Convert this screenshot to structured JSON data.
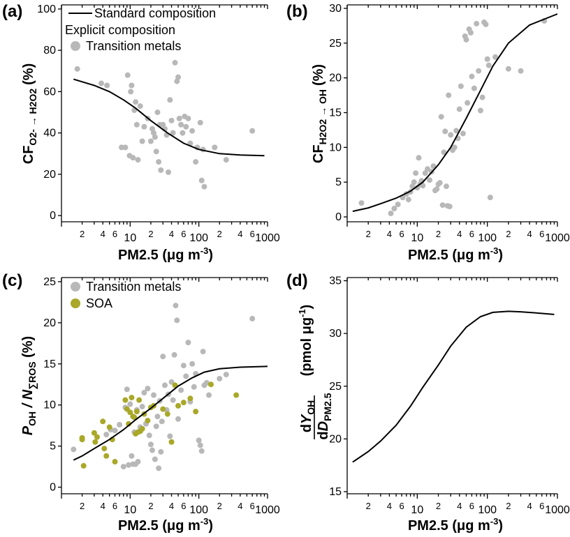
{
  "chart_data": [
    {
      "id": "a",
      "type": "scatter",
      "panel_label": "(a)",
      "xlabel_text": "PM2.5 (μg m",
      "xlabel_sup": "-3",
      "xlabel_close": ")",
      "ylabel_main": "CF",
      "ylabel_sub": "O2- → H2O2",
      "ylabel_unit": "(%)",
      "xscale": "log",
      "xlim": [
        1,
        1000
      ],
      "ylim": [
        -3,
        102
      ],
      "yticks": [
        0,
        20,
        40,
        60,
        80,
        100
      ],
      "xticks_major": [
        "10",
        "100",
        "1000"
      ],
      "xticks_minor": [
        "2",
        "4",
        "6",
        "2",
        "4",
        "6",
        "2",
        "4",
        "6"
      ],
      "legend": {
        "line_label": "Standard composition",
        "title": "Explicit composition",
        "markers": [
          {
            "name": "Transition metals",
            "color": "#b8b8b8"
          }
        ]
      },
      "series": [
        {
          "name": "Standard composition",
          "style": "line",
          "color": "#000000",
          "x": [
            1.5,
            3,
            5,
            8,
            12,
            20,
            35,
            60,
            100,
            200,
            400,
            900
          ],
          "y": [
            66,
            63,
            60,
            56,
            52,
            46,
            40,
            35,
            32,
            30,
            29.3,
            29
          ]
        },
        {
          "name": "Transition metals",
          "style": "points",
          "color": "#b8b8b8",
          "x": [
            1.7,
            3.8,
            4.6,
            7.5,
            8.5,
            9.2,
            9.8,
            10.2,
            10.5,
            11,
            11.5,
            12,
            12.5,
            13,
            14,
            15,
            16,
            18,
            20,
            21,
            22,
            23,
            24,
            25,
            26,
            27,
            28,
            30,
            32,
            34,
            36,
            38,
            40,
            42,
            45,
            48,
            50,
            52,
            55,
            58,
            62,
            65,
            70,
            75,
            80,
            90,
            95,
            105,
            110,
            115,
            120,
            170,
            250,
            600
          ],
          "y": [
            71,
            64,
            63,
            33,
            33,
            68,
            29,
            60,
            63,
            28,
            51,
            55,
            44,
            27,
            53,
            36,
            43,
            47,
            36,
            42,
            40,
            38,
            31,
            50,
            26,
            44,
            22,
            44,
            42,
            39,
            21,
            56,
            46,
            40,
            74,
            65,
            67,
            47,
            44,
            40,
            48,
            43,
            47,
            35,
            41,
            26,
            33,
            45,
            17,
            32,
            14,
            33,
            27,
            41
          ]
        }
      ]
    },
    {
      "id": "b",
      "type": "scatter",
      "panel_label": "(b)",
      "xlabel_text": "PM2.5 (μg m",
      "xlabel_sup": "-3",
      "xlabel_close": ")",
      "ylabel_main": "CF",
      "ylabel_sub": "H2O2 → OH",
      "ylabel_unit": "(%)",
      "xscale": "log",
      "xlim": [
        1,
        1000
      ],
      "ylim": [
        -0.7,
        30.5
      ],
      "yticks": [
        0,
        5,
        10,
        15,
        20,
        25,
        30
      ],
      "xticks_major": [
        "10",
        "100",
        "1000"
      ],
      "xticks_minor": [
        "2",
        "4",
        "6",
        "2",
        "4",
        "6",
        "2",
        "4",
        "6"
      ],
      "series": [
        {
          "name": "Standard composition",
          "style": "line",
          "color": "#000000",
          "x": [
            1.2,
            2,
            3,
            5,
            8,
            12,
            20,
            30,
            50,
            80,
            120,
            200,
            400,
            1000
          ],
          "y": [
            0.8,
            1.3,
            1.9,
            2.7,
            3.7,
            5,
            7.5,
            10,
            14.2,
            18.2,
            21.7,
            25,
            27.6,
            29.2
          ]
        },
        {
          "name": "Transition metals",
          "style": "points",
          "color": "#b8b8b8",
          "x": [
            1.6,
            4.2,
            4.7,
            5.3,
            6.2,
            7,
            7.5,
            8,
            8.5,
            9,
            9.5,
            10,
            10.5,
            11,
            11.5,
            12,
            13,
            14,
            15,
            16,
            17,
            18,
            19,
            20,
            21,
            22,
            23,
            24,
            25,
            26,
            27,
            28,
            29,
            30,
            32,
            34,
            36,
            38,
            40,
            42,
            45,
            48,
            50,
            52,
            55,
            58,
            60,
            65,
            70,
            75,
            80,
            85,
            90,
            95,
            100,
            105,
            110,
            130,
            200,
            300,
            650
          ],
          "y": [
            2,
            0.5,
            1.2,
            1.8,
            2.8,
            3.3,
            2.5,
            3.6,
            4.4,
            5,
            6.3,
            4.2,
            8.5,
            4.7,
            5.2,
            4.5,
            6.3,
            6.9,
            5.3,
            6.5,
            7.3,
            3.8,
            4,
            4.7,
            4.9,
            14.4,
            1.7,
            9.3,
            12.3,
            4.4,
            1.6,
            17.5,
            1.5,
            11.8,
            9.6,
            10,
            12.4,
            11.3,
            15.5,
            18.8,
            12,
            26,
            25.5,
            16.4,
            27,
            26.5,
            20.2,
            18.5,
            27.8,
            21,
            15.3,
            17.2,
            28,
            27.7,
            22.7,
            21.8,
            2.8,
            23,
            21.3,
            21,
            28.2
          ]
        }
      ]
    },
    {
      "id": "c",
      "type": "scatter",
      "panel_label": "(c)",
      "xlabel_text": "PM2.5 (μg m",
      "xlabel_sup": "-3",
      "xlabel_close": ")",
      "ylabel_main": "P",
      "ylabel_sub1": "OH",
      "ylabel_mid": " / N",
      "ylabel_sub2": "∑ROS",
      "ylabel_unit": " (%)",
      "xscale": "log",
      "xlim": [
        1,
        1000
      ],
      "ylim": [
        -0.8,
        25.5
      ],
      "yticks": [
        0,
        5,
        10,
        15,
        20,
        25
      ],
      "xticks_major": [
        "10",
        "100",
        "1000"
      ],
      "xticks_minor": [
        "2",
        "4",
        "6",
        "2",
        "4",
        "6",
        "2",
        "4",
        "6"
      ],
      "legend": {
        "markers": [
          {
            "name": "Transition metals",
            "color": "#b8b8b8"
          },
          {
            "name": "SOA",
            "color": "#a9a829"
          }
        ]
      },
      "series": [
        {
          "name": "Standard composition",
          "style": "line",
          "color": "#000000",
          "x": [
            1.5,
            2,
            3,
            5,
            8,
            12,
            20,
            30,
            50,
            80,
            120,
            200,
            400,
            1000
          ],
          "y": [
            3.3,
            3.8,
            4.7,
            5.8,
            7,
            8.2,
            9.6,
            10.8,
            12.3,
            13.3,
            14,
            14.4,
            14.6,
            14.7
          ]
        },
        {
          "name": "Transition metals",
          "style": "points",
          "color": "#b8b8b8",
          "x": [
            1.5,
            4.5,
            5.2,
            6,
            7,
            8,
            8.5,
            9,
            9.5,
            10,
            10.5,
            11,
            11.5,
            12,
            12.5,
            13,
            14,
            15,
            16,
            17,
            18,
            19,
            20,
            21,
            22,
            23,
            24,
            25,
            26,
            27,
            28,
            29,
            30,
            32,
            34,
            36,
            38,
            40,
            42,
            44,
            46,
            48,
            50,
            55,
            60,
            65,
            70,
            75,
            80,
            85,
            90,
            100,
            105,
            110,
            115,
            120,
            130,
            140,
            200,
            250,
            600
          ],
          "y": [
            4.6,
            6.4,
            7,
            6.9,
            7.6,
            2.5,
            9.7,
            11.9,
            2.7,
            10.1,
            3.8,
            2.8,
            6.7,
            2.8,
            9.4,
            3.1,
            7.3,
            9.8,
            11.5,
            7.7,
            12,
            6.3,
            5.2,
            4.5,
            11.2,
            3.4,
            7.4,
            8.6,
            2.3,
            10.5,
            4.3,
            8,
            15.9,
            12.4,
            9.4,
            11.3,
            6.2,
            12.8,
            10.6,
            16.1,
            22.1,
            20.3,
            8.3,
            11.8,
            14.8,
            13.5,
            17.6,
            10.4,
            15,
            12.2,
            13.8,
            5.7,
            5.1,
            4.4,
            16.5,
            12.4,
            12.7,
            11.2,
            13.2,
            13.7,
            20.5
          ]
        },
        {
          "name": "SOA",
          "style": "points",
          "color": "#a9a829",
          "x": [
            2,
            2,
            2.1,
            3,
            3.1,
            3.3,
            4,
            4.2,
            4.5,
            5,
            5.5,
            6,
            8.5,
            9,
            9.5,
            10,
            10.5,
            11,
            11.5,
            12,
            12.5,
            13,
            13.5,
            14,
            15,
            16,
            18,
            20,
            22,
            30,
            35,
            40,
            45,
            50,
            60,
            75,
            90,
            150,
            350
          ],
          "y": [
            6,
            5.8,
            2.6,
            6.6,
            5.5,
            6.1,
            8,
            4.7,
            3.8,
            7.3,
            5.8,
            3.1,
            10.6,
            9.5,
            7.7,
            9.1,
            10.9,
            8.6,
            8.5,
            6.5,
            9.2,
            6.7,
            10.6,
            6.8,
            7.1,
            8.9,
            8.1,
            9.7,
            9.9,
            9.5,
            8.9,
            5.5,
            12.4,
            9.9,
            10.3,
            10.8,
            9.2,
            12.5,
            11.2
          ]
        }
      ]
    },
    {
      "id": "d",
      "type": "line",
      "panel_label": "(d)",
      "xlabel_text": "PM2.5 (μg m",
      "xlabel_sup": "-3",
      "xlabel_close": ")",
      "ylabel_num_d": "d",
      "ylabel_num_y": "Y",
      "ylabel_num_sub": "OH",
      "ylabel_den_d": "d",
      "ylabel_den_D": "D",
      "ylabel_den_sub": "PM2.5",
      "ylabel_unit": "(pmol μg",
      "ylabel_unit_sup": "-1",
      "ylabel_unit_close": ")",
      "xscale": "log",
      "xlim": [
        1,
        1000
      ],
      "ylim": [
        14.8,
        35.3
      ],
      "yticks": [
        15,
        20,
        25,
        30,
        35
      ],
      "xticks_major": [
        "10",
        "100",
        "1000"
      ],
      "xticks_minor": [
        "2",
        "4",
        "6",
        "2",
        "4",
        "6",
        "2",
        "4",
        "6"
      ],
      "series": [
        {
          "name": "Standard composition",
          "style": "line",
          "color": "#000000",
          "x": [
            1.2,
            2,
            3,
            5,
            8,
            12,
            20,
            30,
            50,
            80,
            120,
            200,
            300,
            500,
            900
          ],
          "y": [
            17.8,
            18.8,
            19.8,
            21.3,
            23.1,
            24.9,
            27,
            28.8,
            30.6,
            31.6,
            32,
            32.1,
            32.05,
            31.95,
            31.8
          ]
        }
      ]
    }
  ]
}
